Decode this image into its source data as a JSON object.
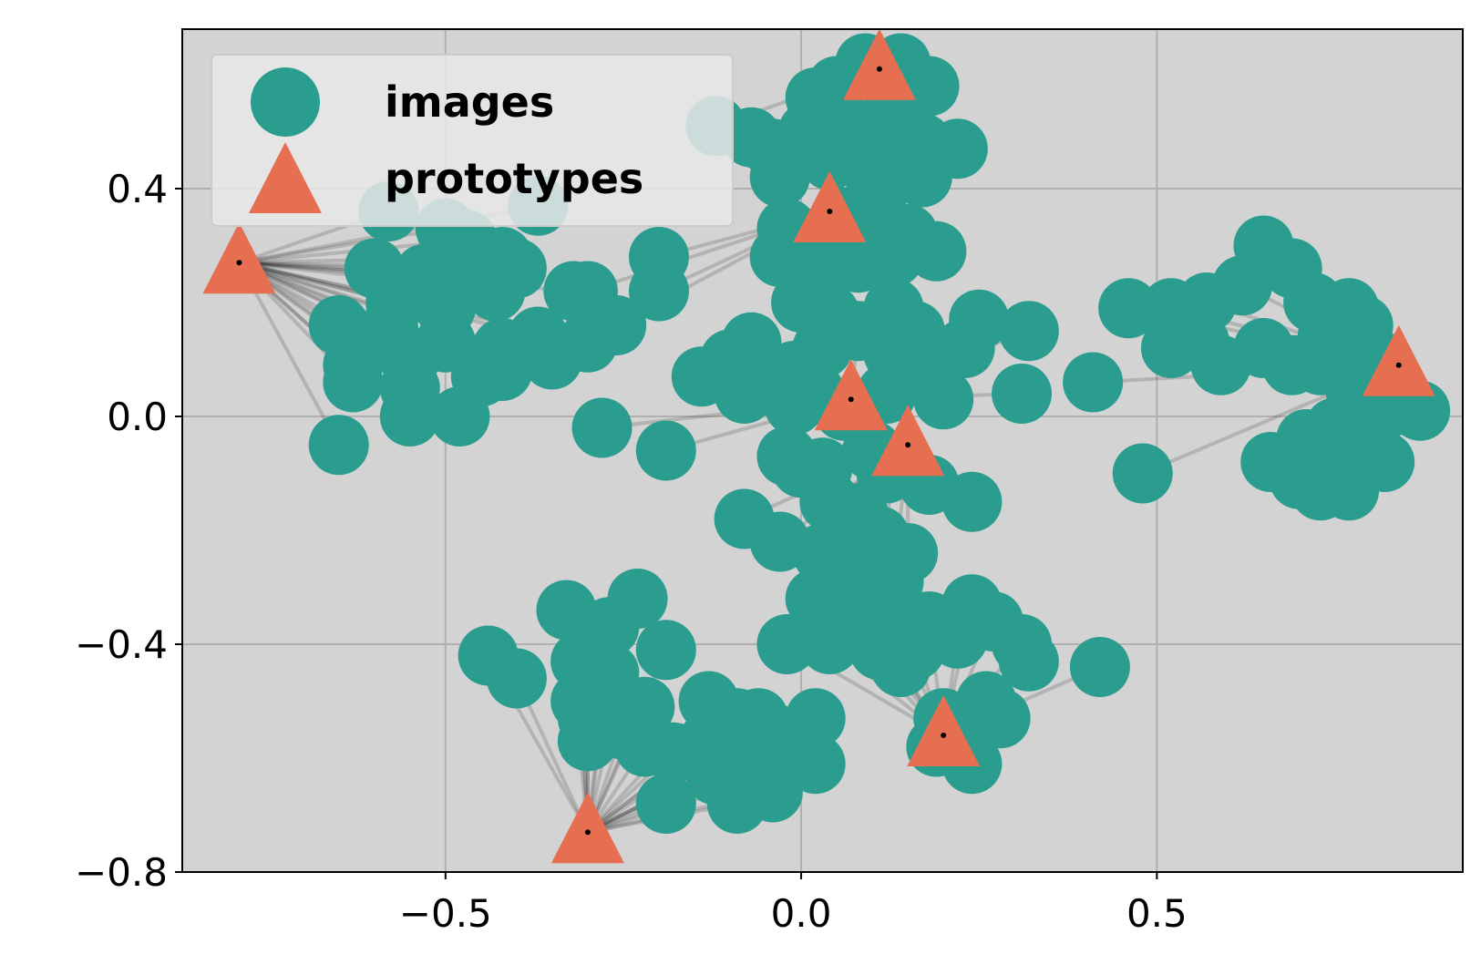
{
  "colors": {
    "plot_bg": "#d3d3d3",
    "grid": "#b0b0b0",
    "image_point": "#2a9d8f",
    "prototype": "#e76f51",
    "link": "#000000",
    "legend_bg": "#e8e8e8"
  },
  "chart_data": {
    "type": "scatter",
    "title": "",
    "xlabel": "",
    "ylabel": "",
    "xlim": [
      -0.87,
      0.93
    ],
    "ylim": [
      -0.8,
      0.68
    ],
    "xticks": [
      -0.5,
      0.0,
      0.5
    ],
    "yticks": [
      -0.8,
      -0.4,
      0.0,
      0.4
    ],
    "xtick_labels": [
      "−0.5",
      "0.0",
      "0.5"
    ],
    "ytick_labels": [
      "−0.8",
      "−0.4",
      "0.0",
      "0.4"
    ],
    "grid": true,
    "legend_position": "top-left",
    "legend": [
      {
        "label": "images",
        "marker": "circle"
      },
      {
        "label": "prototypes",
        "marker": "triangle"
      }
    ],
    "series": [
      {
        "name": "prototypes",
        "marker": "triangle",
        "points": [
          [
            -0.79,
            0.27
          ],
          [
            0.11,
            0.61
          ],
          [
            0.04,
            0.36
          ],
          [
            0.07,
            0.03
          ],
          [
            0.15,
            -0.05
          ],
          [
            0.84,
            0.09
          ],
          [
            0.2,
            -0.56
          ],
          [
            -0.3,
            -0.73
          ]
        ]
      },
      {
        "name": "images",
        "marker": "circle",
        "clusters": [
          {
            "prototype": 0,
            "points": [
              [
                -0.58,
                0.36
              ],
              [
                -0.5,
                0.33
              ],
              [
                -0.47,
                0.31
              ],
              [
                -0.42,
                0.28
              ],
              [
                -0.37,
                0.37
              ],
              [
                -0.6,
                0.26
              ],
              [
                -0.53,
                0.25
              ],
              [
                -0.45,
                0.24
              ],
              [
                -0.4,
                0.26
              ],
              [
                -0.57,
                0.2
              ],
              [
                -0.5,
                0.19
              ],
              [
                -0.43,
                0.22
              ],
              [
                -0.65,
                0.16
              ],
              [
                -0.58,
                0.15
              ],
              [
                -0.5,
                0.13
              ],
              [
                -0.42,
                0.12
              ],
              [
                -0.37,
                0.14
              ],
              [
                -0.63,
                0.09
              ],
              [
                -0.55,
                0.1
              ],
              [
                -0.45,
                0.07
              ],
              [
                -0.63,
                0.06
              ],
              [
                -0.55,
                0.05
              ],
              [
                -0.42,
                0.08
              ],
              [
                -0.35,
                0.1
              ],
              [
                -0.3,
                0.13
              ],
              [
                -0.55,
                0.0
              ],
              [
                -0.48,
                0.0
              ],
              [
                -0.65,
                -0.05
              ],
              [
                -0.32,
                0.22
              ]
            ]
          },
          {
            "prototype": 1,
            "points": [
              [
                0.02,
                0.56
              ],
              [
                0.05,
                0.58
              ],
              [
                0.09,
                0.62
              ],
              [
                0.14,
                0.62
              ],
              [
                0.18,
                0.58
              ],
              [
                -0.12,
                0.51
              ],
              [
                -0.07,
                0.49
              ],
              [
                -0.04,
                0.47
              ],
              [
                0.01,
                0.5
              ],
              [
                0.07,
                0.5
              ],
              [
                0.12,
                0.52
              ],
              [
                0.17,
                0.48
              ],
              [
                0.22,
                0.47
              ],
              [
                -0.03,
                0.42
              ],
              [
                0.04,
                0.45
              ],
              [
                0.1,
                0.43
              ],
              [
                0.17,
                0.42
              ]
            ]
          },
          {
            "prototype": 2,
            "points": [
              [
                -0.02,
                0.33
              ],
              [
                0.02,
                0.3
              ],
              [
                0.06,
                0.35
              ],
              [
                0.11,
                0.35
              ],
              [
                0.15,
                0.32
              ],
              [
                -0.03,
                0.28
              ],
              [
                0.02,
                0.25
              ],
              [
                0.08,
                0.27
              ],
              [
                0.13,
                0.28
              ],
              [
                0.19,
                0.29
              ],
              [
                0.0,
                0.2
              ],
              [
                0.04,
                0.18
              ],
              [
                0.13,
                0.19
              ],
              [
                0.16,
                0.15
              ],
              [
                -0.2,
                0.28
              ],
              [
                -0.2,
                0.22
              ],
              [
                -0.3,
                0.22
              ],
              [
                -0.26,
                0.16
              ]
            ]
          },
          {
            "prototype": 3,
            "points": [
              [
                -0.07,
                0.13
              ],
              [
                -0.1,
                0.1
              ],
              [
                -0.14,
                0.07
              ],
              [
                -0.08,
                0.04
              ],
              [
                -0.01,
                0.08
              ],
              [
                0.03,
                0.12
              ],
              [
                0.08,
                0.15
              ],
              [
                0.13,
                0.11
              ],
              [
                0.17,
                0.08
              ],
              [
                0.23,
                0.12
              ],
              [
                0.25,
                0.17
              ],
              [
                0.32,
                0.15
              ],
              [
                0.02,
                0.04
              ],
              [
                0.06,
                0.01
              ],
              [
                0.12,
                0.04
              ],
              [
                0.2,
                0.03
              ],
              [
                0.31,
                0.04
              ],
              [
                -0.28,
                -0.02
              ],
              [
                -0.19,
                -0.06
              ],
              [
                -0.01,
                0.02
              ]
            ]
          },
          {
            "prototype": 4,
            "points": [
              [
                -0.02,
                -0.07
              ],
              [
                0.03,
                -0.09
              ],
              [
                0.1,
                -0.06
              ],
              [
                0.12,
                -0.1
              ],
              [
                0.18,
                -0.12
              ],
              [
                0.24,
                -0.15
              ],
              [
                0.08,
                -0.17
              ],
              [
                0.11,
                -0.21
              ],
              [
                0.15,
                -0.24
              ],
              [
                0.13,
                -0.29
              ],
              [
                0.04,
                -0.15
              ],
              [
                -0.08,
                -0.18
              ],
              [
                -0.03,
                -0.22
              ],
              [
                0.03,
                -0.24
              ],
              [
                0.06,
                -0.27
              ],
              [
                0.0,
                -0.09
              ]
            ]
          },
          {
            "prototype": 5,
            "points": [
              [
                0.46,
                0.19
              ],
              [
                0.52,
                0.19
              ],
              [
                0.57,
                0.2
              ],
              [
                0.62,
                0.23
              ],
              [
                0.65,
                0.3
              ],
              [
                0.69,
                0.26
              ],
              [
                0.52,
                0.12
              ],
              [
                0.56,
                0.13
              ],
              [
                0.59,
                0.09
              ],
              [
                0.65,
                0.12
              ],
              [
                0.69,
                0.09
              ],
              [
                0.73,
                0.09
              ],
              [
                0.77,
                0.08
              ],
              [
                0.81,
                0.1
              ],
              [
                0.74,
                0.14
              ],
              [
                0.79,
                0.16
              ],
              [
                0.72,
                0.2
              ],
              [
                0.77,
                0.19
              ],
              [
                0.78,
                0.04
              ],
              [
                0.84,
                0.02
              ],
              [
                0.75,
                -0.02
              ],
              [
                0.8,
                -0.03
              ],
              [
                0.83,
                0.04
              ],
              [
                0.71,
                -0.04
              ],
              [
                0.66,
                -0.08
              ],
              [
                0.7,
                -0.11
              ],
              [
                0.75,
                -0.1
              ],
              [
                0.73,
                -0.13
              ],
              [
                0.77,
                -0.13
              ],
              [
                0.82,
                -0.08
              ],
              [
                0.41,
                0.06
              ],
              [
                0.48,
                -0.1
              ],
              [
                0.87,
                0.01
              ]
            ]
          },
          {
            "prototype": 6,
            "points": [
              [
                0.02,
                -0.32
              ],
              [
                0.08,
                -0.33
              ],
              [
                0.13,
                -0.36
              ],
              [
                0.18,
                -0.36
              ],
              [
                0.24,
                -0.33
              ],
              [
                0.27,
                -0.36
              ],
              [
                -0.02,
                -0.4
              ],
              [
                0.04,
                -0.4
              ],
              [
                0.11,
                -0.41
              ],
              [
                0.16,
                -0.41
              ],
              [
                0.22,
                -0.39
              ],
              [
                0.31,
                -0.4
              ],
              [
                0.32,
                -0.43
              ],
              [
                0.42,
                -0.44
              ],
              [
                0.14,
                -0.44
              ],
              [
                0.2,
                -0.53
              ],
              [
                0.26,
                -0.5
              ],
              [
                0.28,
                -0.53
              ],
              [
                0.23,
                -0.58
              ],
              [
                0.24,
                -0.61
              ],
              [
                0.19,
                -0.58
              ]
            ]
          },
          {
            "prototype": 7,
            "points": [
              [
                -0.33,
                -0.34
              ],
              [
                -0.27,
                -0.37
              ],
              [
                -0.23,
                -0.32
              ],
              [
                -0.19,
                -0.41
              ],
              [
                -0.44,
                -0.42
              ],
              [
                -0.4,
                -0.46
              ],
              [
                -0.31,
                -0.43
              ],
              [
                -0.31,
                -0.5
              ],
              [
                -0.27,
                -0.45
              ],
              [
                -0.22,
                -0.51
              ],
              [
                -0.13,
                -0.5
              ],
              [
                -0.3,
                -0.53
              ],
              [
                -0.25,
                -0.55
              ],
              [
                -0.09,
                -0.53
              ],
              [
                -0.06,
                -0.53
              ],
              [
                -0.3,
                -0.57
              ],
              [
                -0.22,
                -0.58
              ],
              [
                -0.18,
                -0.59
              ],
              [
                -0.13,
                -0.57
              ],
              [
                -0.07,
                -0.58
              ],
              [
                -0.03,
                -0.56
              ],
              [
                0.02,
                -0.53
              ],
              [
                0.02,
                -0.61
              ],
              [
                -0.19,
                -0.68
              ],
              [
                -0.09,
                -0.68
              ],
              [
                -0.04,
                -0.66
              ],
              [
                -0.12,
                -0.63
              ]
            ]
          }
        ]
      }
    ]
  }
}
